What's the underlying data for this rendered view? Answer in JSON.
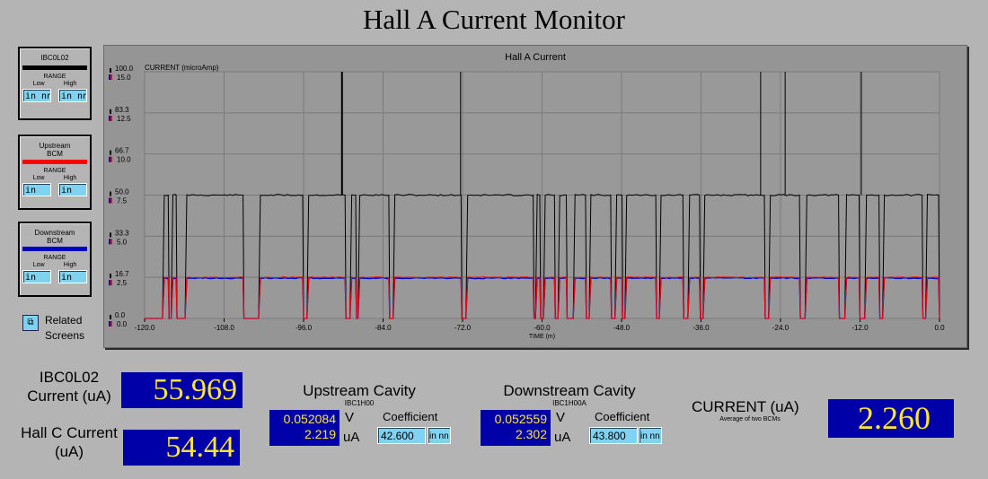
{
  "title": "Hall A Current Monitor",
  "legend": [
    {
      "name": "IBC0L02",
      "color": "#000000",
      "range_label": "RANGE",
      "low_label": "Low",
      "high_label": "High",
      "low": "in nn",
      "high": "in nn"
    },
    {
      "name": "Upstream BCM",
      "color": "#ff0000",
      "range_label": "RANGE",
      "low_label": "Low",
      "high_label": "High",
      "low": "in",
      "high": "in"
    },
    {
      "name": "Downstream BCM",
      "color": "#0000c0",
      "range_label": "RANGE",
      "low_label": "Low",
      "high_label": "High",
      "low": "in",
      "high": "in"
    }
  ],
  "related_screens": "Related Screens",
  "chart_data": {
    "type": "line",
    "title": "Hall A Current",
    "ylabel": "CURRENT (microAmp)",
    "xlabel": "TIME (m)",
    "xlim": [
      -120,
      0
    ],
    "x_ticks": [
      "-120.0",
      "-108.0",
      "-96.0",
      "-84.0",
      "-72.0",
      "-60.0",
      "-48.0",
      "-36.0",
      "-24.0",
      "-12.0",
      "0.0"
    ],
    "y_ticks_left": [
      "100.0",
      "83.3",
      "66.7",
      "50.0",
      "33.3",
      "16.7",
      "0.0"
    ],
    "y_ticks_right": [
      "15.0",
      "12.5",
      "10.0",
      "7.5",
      "5.0",
      "2.5",
      "0.0"
    ],
    "ylim_left": [
      0,
      100
    ],
    "ylim_right": [
      0,
      15
    ],
    "grid": true,
    "series": [
      {
        "color": "#000000",
        "axis": "left",
        "level": 50,
        "spikes": [
          -90.2,
          -72.3,
          -27,
          -23.3,
          -11.8
        ]
      },
      {
        "color": "#ff0000",
        "axis": "right",
        "level": 2.5
      },
      {
        "color": "#0000c0",
        "axis": "right",
        "level": 2.45
      }
    ],
    "beam_on": [
      [
        -117.3,
        -116.3
      ],
      [
        -116.0,
        -115.1
      ],
      [
        -113.9,
        -105.0
      ],
      [
        -102.8,
        -96.0
      ],
      [
        -95.5,
        -89.6
      ],
      [
        -89.0,
        -88.0
      ],
      [
        -87.8,
        -83.0
      ],
      [
        -82.5,
        -72.1
      ],
      [
        -71.5,
        -61.2
      ],
      [
        -61.0,
        -60.2
      ],
      [
        -59.8,
        -58.0
      ],
      [
        -57.6,
        -56.2
      ],
      [
        -55.3,
        -53.3
      ],
      [
        -52.9,
        -49.5
      ],
      [
        -49.0,
        -47.8
      ],
      [
        -47.5,
        -42.7
      ],
      [
        -42.3,
        -38.6
      ],
      [
        -38.0,
        -36.1
      ],
      [
        -35.7,
        -26.3
      ],
      [
        -25.8,
        -21.0
      ],
      [
        -20.3,
        -15.1
      ],
      [
        -14.3,
        -12.0
      ],
      [
        -11.3,
        -9.0
      ],
      [
        -8.6,
        -2.5
      ],
      [
        -2.1,
        0.0
      ]
    ]
  },
  "ibc0l02": {
    "label": "IBC0L02 Current (uA)",
    "value": "55.969"
  },
  "hallc": {
    "label": "Hall C Current (uA)",
    "value": "54.44"
  },
  "upstream": {
    "title": "Upstream Cavity",
    "device": "IBC1H00",
    "voltage": "0.052084",
    "volt_unit": "V",
    "current": "2.219",
    "current_unit": "uA",
    "coef_label": "Coefficient",
    "coef": "42.600",
    "coef_aux": "in nn"
  },
  "downstream": {
    "title": "Downstream Cavity",
    "device": "IBC1H00A",
    "voltage": "0.052559",
    "volt_unit": "V",
    "current": "2.302",
    "current_unit": "uA",
    "coef_label": "Coefficient",
    "coef": "43.800",
    "coef_aux": "in nn"
  },
  "average": {
    "label": "CURRENT (uA)",
    "sublabel": "Average of two BCMs",
    "value": "2.260"
  }
}
